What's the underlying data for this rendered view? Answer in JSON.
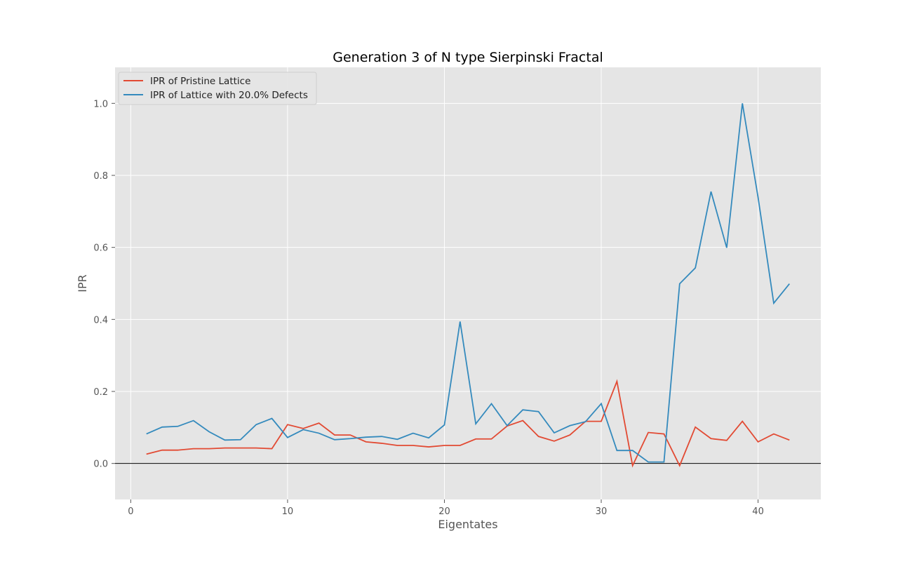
{
  "chart_data": {
    "type": "line",
    "title": "Generation 3 of N type Sierpinski Fractal",
    "xlabel": "Eigentates",
    "ylabel": "IPR",
    "xlim": [
      -1,
      44
    ],
    "ylim": [
      -0.1,
      1.1
    ],
    "xticks": [
      0,
      10,
      20,
      30,
      40
    ],
    "yticks": [
      0.0,
      0.2,
      0.4,
      0.6,
      0.8,
      1.0
    ],
    "xtick_labels": [
      "0",
      "10",
      "20",
      "30",
      "40"
    ],
    "ytick_labels": [
      "0.0",
      "0.2",
      "0.4",
      "0.6",
      "0.8",
      "1.0"
    ],
    "grid": true,
    "hline_y": 0,
    "legend_position": "top-left",
    "x": [
      1,
      2,
      3,
      4,
      5,
      6,
      7,
      8,
      9,
      10,
      11,
      12,
      13,
      14,
      15,
      16,
      17,
      18,
      19,
      20,
      21,
      22,
      23,
      24,
      25,
      26,
      27,
      28,
      29,
      30,
      31,
      32,
      33,
      34,
      35,
      36,
      37,
      38,
      39,
      40,
      41,
      42
    ],
    "series": [
      {
        "name": "IPR of Pristine Lattice",
        "color": "#E24A33",
        "values": [
          0.026,
          0.037,
          0.037,
          0.041,
          0.041,
          0.043,
          0.043,
          0.043,
          0.041,
          0.108,
          0.097,
          0.112,
          0.079,
          0.079,
          0.06,
          0.056,
          0.05,
          0.05,
          0.046,
          0.05,
          0.05,
          0.068,
          0.068,
          0.104,
          0.119,
          0.075,
          0.062,
          0.079,
          0.117,
          0.117,
          0.228,
          -0.006,
          0.086,
          0.082,
          -0.006,
          0.101,
          0.069,
          0.064,
          0.117,
          0.06,
          0.082,
          0.065
        ]
      },
      {
        "name": "IPR of Lattice with 20.0% Defects",
        "color": "#348ABD",
        "values": [
          0.082,
          0.101,
          0.103,
          0.119,
          0.088,
          0.065,
          0.066,
          0.108,
          0.125,
          0.072,
          0.094,
          0.084,
          0.066,
          0.069,
          0.073,
          0.075,
          0.067,
          0.084,
          0.071,
          0.107,
          0.394,
          0.11,
          0.166,
          0.105,
          0.149,
          0.144,
          0.085,
          0.105,
          0.116,
          0.166,
          0.036,
          0.036,
          0.004,
          0.004,
          0.499,
          0.543,
          0.755,
          0.599,
          1.0,
          0.739,
          0.445,
          0.499
        ]
      }
    ]
  }
}
